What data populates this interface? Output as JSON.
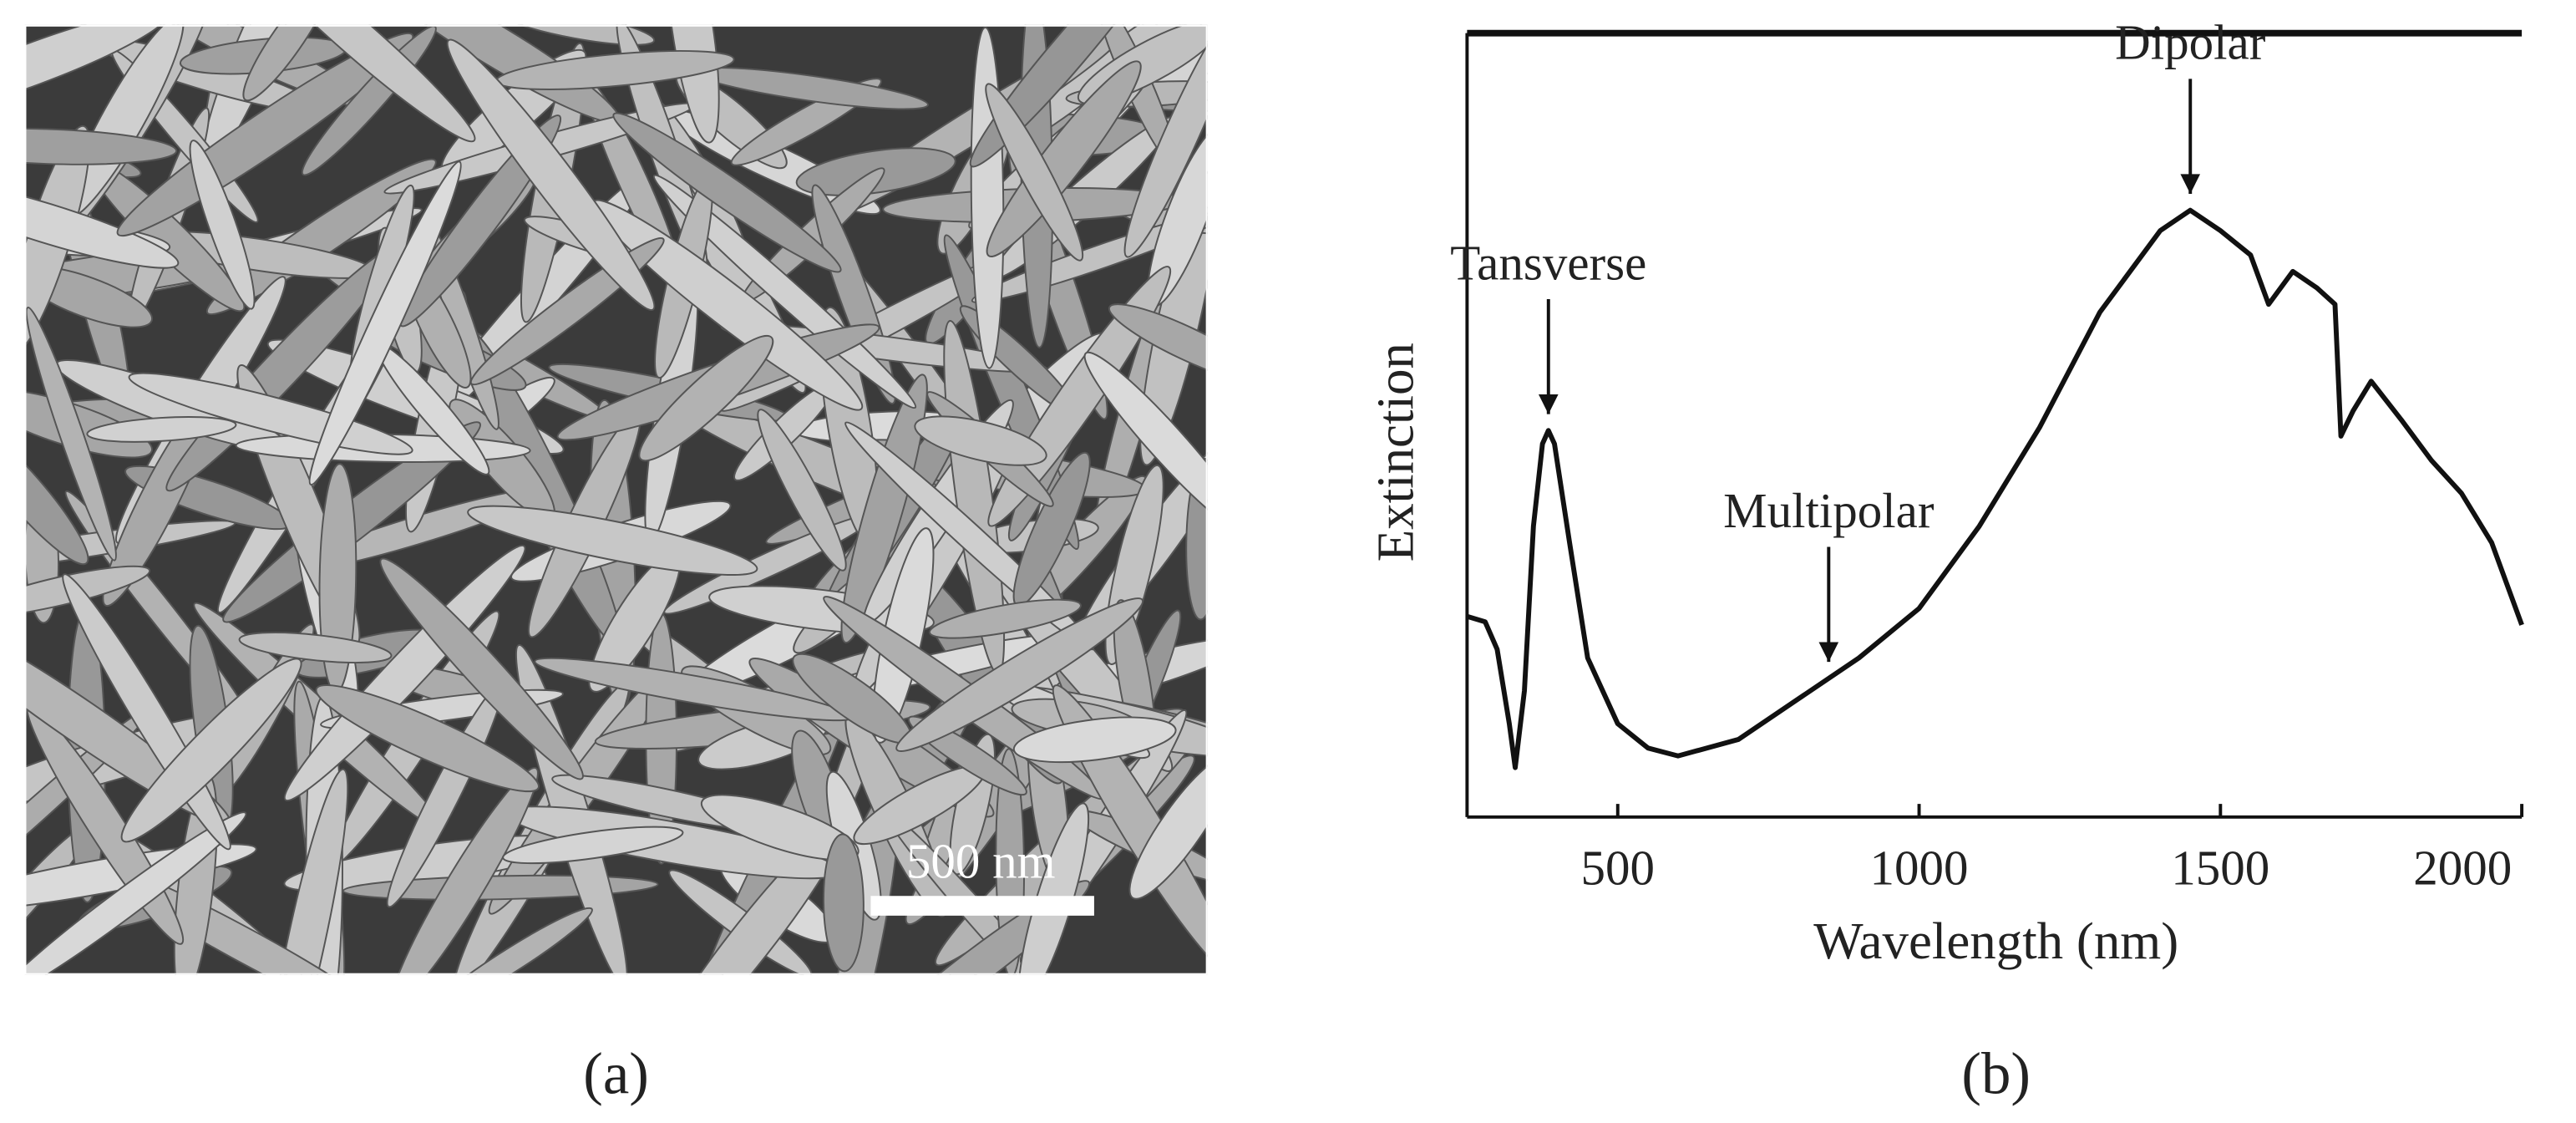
{
  "panels": {
    "a": {
      "caption": "(a)",
      "scale_bar": "500 nm"
    },
    "b": {
      "caption": "(b)"
    }
  },
  "chart_data": {
    "type": "line",
    "x_label": "Wavelength (nm)",
    "y_label": "Extinction",
    "x": [
      250,
      280,
      300,
      320,
      330,
      345,
      360,
      375,
      385,
      395,
      420,
      450,
      500,
      550,
      600,
      700,
      800,
      900,
      1000,
      1100,
      1200,
      1300,
      1400,
      1450,
      1500,
      1550,
      1580,
      1620,
      1660,
      1690,
      1700,
      1720,
      1750,
      1800,
      1850,
      1900,
      1950,
      2000
    ],
    "values": [
      0.256,
      0.249,
      0.214,
      0.119,
      0.063,
      0.161,
      0.371,
      0.476,
      0.493,
      0.476,
      0.35,
      0.203,
      0.119,
      0.088,
      0.078,
      0.099,
      0.151,
      0.203,
      0.266,
      0.371,
      0.497,
      0.644,
      0.748,
      0.774,
      0.748,
      0.717,
      0.654,
      0.696,
      0.675,
      0.654,
      0.486,
      0.518,
      0.556,
      0.507,
      0.455,
      0.413,
      0.35,
      0.245
    ],
    "color": "#111111",
    "xlim": [
      250,
      2000
    ],
    "xticks": [
      500,
      1000,
      1500,
      2000
    ],
    "ylim": [
      0,
      1
    ],
    "annotations": [
      {
        "text": "Tansverse",
        "x": 385
      },
      {
        "text": "Multipolar",
        "x": 850
      },
      {
        "text": "Dipolar",
        "x": 1450
      }
    ]
  }
}
